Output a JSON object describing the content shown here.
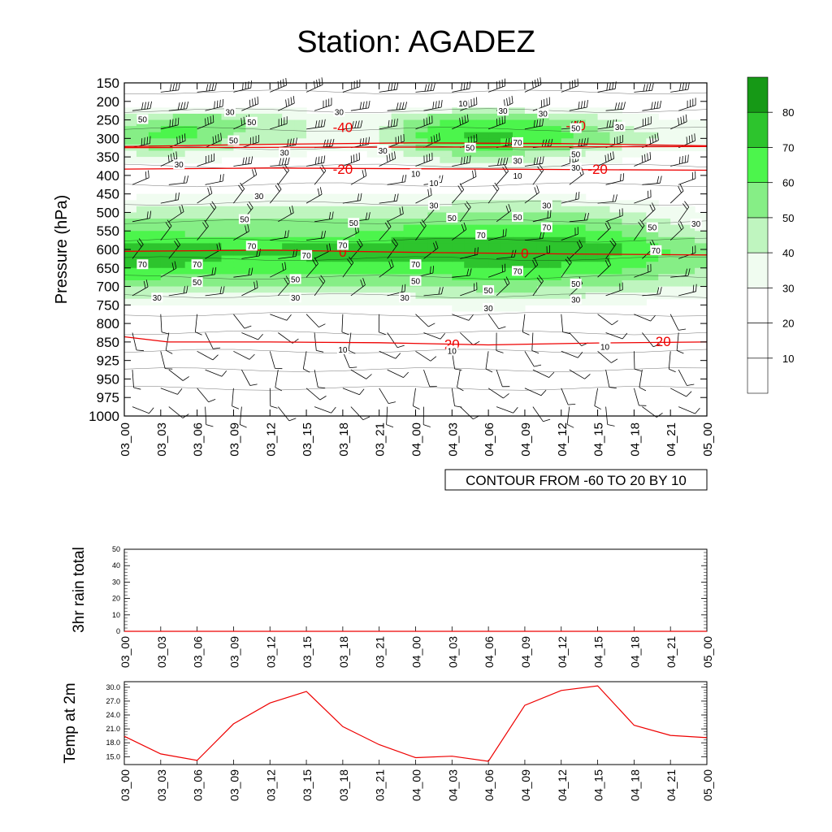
{
  "title": "Station: AGADEZ",
  "colors": {
    "shade_levels": [
      "#ffffff",
      "#ffffff",
      "#ffffff",
      "#f0fcf0",
      "#bff5bf",
      "#86ee86",
      "#4cf54c",
      "#2dc42d",
      "#169916"
    ],
    "temperature_contour": "#ee0000",
    "rh_contour": "#000000",
    "temp_line": "#ee0000"
  },
  "chart_data": [
    {
      "type": "heatmap",
      "ylabel": "Pressure (hPa)",
      "pressure_levels": [
        150,
        200,
        250,
        300,
        350,
        400,
        450,
        500,
        550,
        600,
        650,
        700,
        750,
        800,
        850,
        925,
        950,
        975,
        1000
      ],
      "time_labels": [
        "03_00",
        "03_03",
        "03_06",
        "03_09",
        "03_12",
        "03_15",
        "03_18",
        "03_21",
        "04_00",
        "04_03",
        "04_06",
        "04_09",
        "04_12",
        "04_15",
        "04_18",
        "04_21",
        "05_00"
      ],
      "colorbar_labels": [
        "10",
        "20",
        "30",
        "40",
        "50",
        "60",
        "70",
        "80"
      ],
      "contour_note": "CONTOUR FROM -60 TO 20 BY 10",
      "relative_humidity": [
        [
          10,
          10,
          10,
          10,
          10,
          10,
          10,
          10,
          10,
          10,
          10,
          10,
          10,
          10,
          10,
          10,
          10
        ],
        [
          20,
          20,
          20,
          20,
          20,
          20,
          20,
          20,
          20,
          20,
          20,
          20,
          20,
          20,
          20,
          20,
          20
        ],
        [
          45,
          55,
          60,
          55,
          45,
          40,
          35,
          35,
          55,
          60,
          62,
          60,
          55,
          45,
          35,
          30,
          30
        ],
        [
          55,
          65,
          60,
          50,
          45,
          40,
          35,
          38,
          60,
          70,
          75,
          70,
          65,
          55,
          45,
          38,
          35
        ],
        [
          35,
          38,
          35,
          30,
          30,
          28,
          25,
          30,
          40,
          45,
          50,
          45,
          40,
          35,
          30,
          25,
          25
        ],
        [
          20,
          20,
          20,
          20,
          20,
          20,
          20,
          20,
          20,
          20,
          20,
          20,
          20,
          20,
          20,
          20,
          20
        ],
        [
          25,
          30,
          30,
          30,
          30,
          30,
          30,
          30,
          30,
          30,
          30,
          30,
          30,
          25,
          25,
          20,
          20
        ],
        [
          40,
          45,
          45,
          45,
          45,
          45,
          45,
          45,
          45,
          50,
          50,
          50,
          50,
          45,
          40,
          35,
          30
        ],
        [
          60,
          60,
          55,
          55,
          55,
          55,
          55,
          60,
          65,
          65,
          65,
          65,
          65,
          60,
          55,
          45,
          40
        ],
        [
          75,
          80,
          75,
          72,
          72,
          75,
          75,
          78,
          78,
          78,
          75,
          80,
          82,
          78,
          70,
          60,
          55
        ],
        [
          70,
          70,
          68,
          65,
          65,
          65,
          65,
          65,
          68,
          68,
          70,
          70,
          68,
          65,
          60,
          55,
          50
        ],
        [
          50,
          50,
          50,
          50,
          50,
          50,
          50,
          50,
          50,
          52,
          55,
          55,
          52,
          50,
          45,
          42,
          40
        ],
        [
          30,
          30,
          28,
          28,
          28,
          28,
          28,
          28,
          30,
          32,
          32,
          32,
          30,
          28,
          28,
          25,
          25
        ],
        [
          20,
          20,
          20,
          20,
          20,
          20,
          20,
          20,
          20,
          20,
          20,
          20,
          20,
          20,
          20,
          20,
          20
        ],
        [
          15,
          15,
          15,
          15,
          15,
          15,
          15,
          15,
          15,
          15,
          15,
          15,
          15,
          15,
          15,
          15,
          15
        ],
        [
          10,
          10,
          10,
          10,
          10,
          10,
          10,
          10,
          10,
          10,
          10,
          10,
          10,
          10,
          10,
          10,
          10
        ],
        [
          8,
          8,
          8,
          8,
          8,
          8,
          8,
          8,
          8,
          8,
          8,
          8,
          8,
          8,
          8,
          8,
          8
        ],
        [
          6,
          6,
          6,
          6,
          6,
          6,
          6,
          6,
          6,
          6,
          6,
          6,
          6,
          6,
          6,
          6,
          6
        ],
        [
          5,
          5,
          5,
          5,
          5,
          5,
          5,
          5,
          5,
          5,
          5,
          5,
          5,
          5,
          5,
          5,
          5
        ]
      ],
      "rh_contour_labels": [
        {
          "value": "10",
          "t": 9.3,
          "p": 205
        },
        {
          "value": "30",
          "t": 2.9,
          "p": 228
        },
        {
          "value": "30",
          "t": 5.9,
          "p": 228
        },
        {
          "value": "30",
          "t": 10.4,
          "p": 225
        },
        {
          "value": "30",
          "t": 11.5,
          "p": 232
        },
        {
          "value": "50",
          "t": 3.5,
          "p": 255
        },
        {
          "value": "50",
          "t": 0.5,
          "p": 248
        },
        {
          "value": "30",
          "t": 13.6,
          "p": 268
        },
        {
          "value": "50",
          "t": 12.4,
          "p": 272
        },
        {
          "value": "50",
          "t": 3.0,
          "p": 305
        },
        {
          "value": "70",
          "t": 10.8,
          "p": 310
        },
        {
          "value": "50",
          "t": 9.5,
          "p": 325
        },
        {
          "value": "50",
          "t": 12.4,
          "p": 342
        },
        {
          "value": "30",
          "t": 4.4,
          "p": 338
        },
        {
          "value": "30",
          "t": 7.1,
          "p": 332
        },
        {
          "value": "30",
          "t": 10.8,
          "p": 360
        },
        {
          "value": "30",
          "t": 1.5,
          "p": 370
        },
        {
          "value": "30",
          "t": 12.4,
          "p": 378
        },
        {
          "value": "10",
          "t": 8.0,
          "p": 395
        },
        {
          "value": "10",
          "t": 10.8,
          "p": 400
        },
        {
          "value": "10",
          "t": 8.5,
          "p": 420
        },
        {
          "value": "30",
          "t": 3.7,
          "p": 455
        },
        {
          "value": "30",
          "t": 8.5,
          "p": 480
        },
        {
          "value": "30",
          "t": 11.6,
          "p": 480
        },
        {
          "value": "50",
          "t": 3.3,
          "p": 518
        },
        {
          "value": "50",
          "t": 6.3,
          "p": 528
        },
        {
          "value": "50",
          "t": 9.0,
          "p": 514
        },
        {
          "value": "50",
          "t": 10.8,
          "p": 512
        },
        {
          "value": "70",
          "t": 11.6,
          "p": 540
        },
        {
          "value": "50",
          "t": 14.5,
          "p": 540
        },
        {
          "value": "30",
          "t": 15.7,
          "p": 530
        },
        {
          "value": "70",
          "t": 9.8,
          "p": 560
        },
        {
          "value": "70",
          "t": 3.5,
          "p": 590
        },
        {
          "value": "70",
          "t": 6.0,
          "p": 588
        },
        {
          "value": "70",
          "t": 5.0,
          "p": 615
        },
        {
          "value": "70",
          "t": 14.6,
          "p": 602
        },
        {
          "value": "70",
          "t": 0.5,
          "p": 640
        },
        {
          "value": "70",
          "t": 2.0,
          "p": 640
        },
        {
          "value": "70",
          "t": 8.0,
          "p": 640
        },
        {
          "value": "70",
          "t": 10.8,
          "p": 658
        },
        {
          "value": "50",
          "t": 2.0,
          "p": 688
        },
        {
          "value": "50",
          "t": 4.7,
          "p": 680
        },
        {
          "value": "50",
          "t": 8.0,
          "p": 685
        },
        {
          "value": "50",
          "t": 12.4,
          "p": 692
        },
        {
          "value": "50",
          "t": 10.0,
          "p": 710
        },
        {
          "value": "30",
          "t": 0.9,
          "p": 730
        },
        {
          "value": "30",
          "t": 4.7,
          "p": 730
        },
        {
          "value": "30",
          "t": 7.7,
          "p": 730
        },
        {
          "value": "30",
          "t": 10.0,
          "p": 758
        },
        {
          "value": "30",
          "t": 12.4,
          "p": 735
        },
        {
          "value": "10",
          "t": 6.0,
          "p": 880
        },
        {
          "value": "10",
          "t": 9.0,
          "p": 885
        },
        {
          "value": "10",
          "t": 13.2,
          "p": 868
        }
      ],
      "temperature_contours": [
        {
          "label": "-40",
          "label_t": 6.0,
          "label_p": 270,
          "pts": [
            [
              0,
              322
            ],
            [
              4,
              316
            ],
            [
              8,
              312
            ],
            [
              12,
              314
            ],
            [
              16,
              320
            ]
          ]
        },
        {
          "label": "-40",
          "label_t": 12.4,
          "label_p": 265,
          "pts": [
            [
              0,
              325
            ],
            [
              16,
              322
            ]
          ]
        },
        {
          "label": "-20",
          "label_t": 6.0,
          "label_p": 383,
          "pts": [
            [
              0,
              383
            ],
            [
              4,
              380
            ],
            [
              8,
              382
            ],
            [
              12,
              384
            ],
            [
              16,
              386
            ]
          ]
        },
        {
          "label": "-20",
          "label_t": 13.0,
          "label_p": 383,
          "pts": []
        },
        {
          "label": "0",
          "label_t": 6.0,
          "label_p": 607,
          "pts": [
            [
              0,
              605
            ],
            [
              4,
              602
            ],
            [
              8,
              608
            ],
            [
              12,
              612
            ],
            [
              16,
              615
            ]
          ]
        },
        {
          "label": "0",
          "label_t": 11.0,
          "label_p": 610,
          "pts": []
        },
        {
          "label": "20",
          "label_t": 9.0,
          "label_p": 858,
          "pts": [
            [
              0,
              836
            ],
            [
              1.2,
              850
            ],
            [
              4,
              850
            ],
            [
              7,
              853
            ],
            [
              10,
              862
            ],
            [
              13,
              854
            ],
            [
              16,
              850
            ]
          ]
        },
        {
          "label": "20",
          "label_t": 14.8,
          "label_p": 848,
          "pts": []
        }
      ],
      "wind_barbs": "shown"
    },
    {
      "type": "line",
      "ylabel": "3hr rain total",
      "x": [
        "03_00",
        "03_03",
        "03_06",
        "03_09",
        "03_12",
        "03_15",
        "03_18",
        "03_21",
        "04_00",
        "04_03",
        "04_06",
        "04_09",
        "04_12",
        "04_15",
        "04_18",
        "04_21",
        "05_00"
      ],
      "values": [
        0,
        0,
        0,
        0,
        0,
        0,
        0,
        0,
        0,
        0,
        0,
        0,
        0,
        0,
        0,
        0,
        0
      ],
      "ylim": [
        0,
        50
      ],
      "yticks": [
        "0",
        "10",
        "20",
        "30",
        "40",
        "50"
      ]
    },
    {
      "type": "line",
      "ylabel": "Temp at 2m",
      "x": [
        "03_00",
        "03_03",
        "03_06",
        "03_09",
        "03_12",
        "03_15",
        "03_18",
        "03_21",
        "04_00",
        "04_03",
        "04_06",
        "04_09",
        "04_12",
        "04_15",
        "04_18",
        "04_21",
        "05_00"
      ],
      "values": [
        19.4,
        15.6,
        14.2,
        22.1,
        26.6,
        29.1,
        21.5,
        17.6,
        14.8,
        15.1,
        14.0,
        26.1,
        29.3,
        30.3,
        21.8,
        19.6,
        19.1
      ],
      "ylim": [
        13.3,
        31.2
      ],
      "yticks": [
        "15.0",
        "18.0",
        "21.0",
        "24.0",
        "27.0",
        "30.0"
      ]
    }
  ]
}
